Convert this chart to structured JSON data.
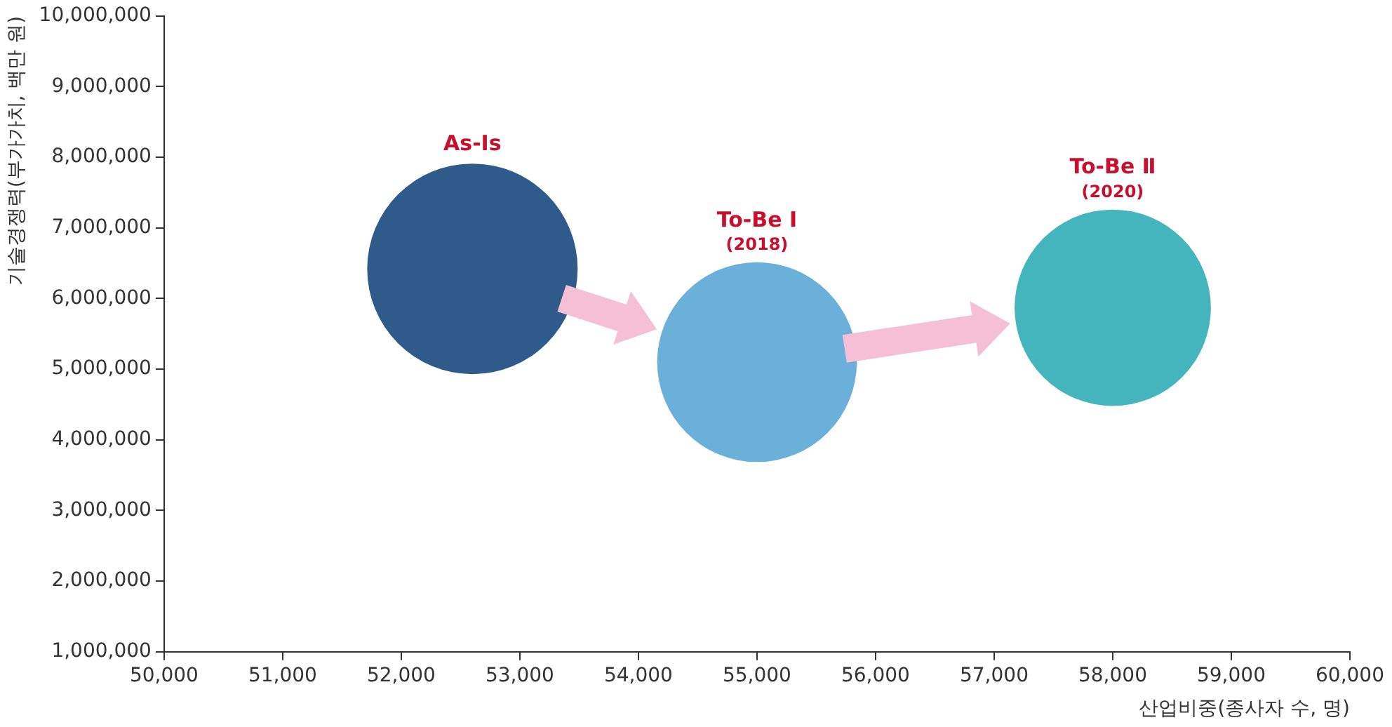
{
  "chart_data": {
    "type": "bubble",
    "xlabel": "산업비중(종사자 수, 명)",
    "ylabel": "기술경쟁력(부가가치, 백만 원)",
    "xlim": [
      50000,
      60000
    ],
    "xticks": [
      {
        "value": 50000,
        "label": "50,000"
      },
      {
        "value": 51000,
        "label": "51,000"
      },
      {
        "value": 52000,
        "label": "52,000"
      },
      {
        "value": 53000,
        "label": "53,000"
      },
      {
        "value": 54000,
        "label": "54,000"
      },
      {
        "value": 55000,
        "label": "55,000"
      },
      {
        "value": 56000,
        "label": "56,000"
      },
      {
        "value": 57000,
        "label": "57,000"
      },
      {
        "value": 58000,
        "label": "58,000"
      },
      {
        "value": 59000,
        "label": "59,000"
      },
      {
        "value": 60000,
        "label": "60,000"
      }
    ],
    "ylim": [
      1000000,
      10000000
    ],
    "yticks": [
      {
        "value": 1000000,
        "label": "1,000,000"
      },
      {
        "value": 2000000,
        "label": "2,000,000"
      },
      {
        "value": 3000000,
        "label": "3,000,000"
      },
      {
        "value": 4000000,
        "label": "4,000,000"
      },
      {
        "value": 5000000,
        "label": "5,000,000"
      },
      {
        "value": 6000000,
        "label": "6,000,000"
      },
      {
        "value": 7000000,
        "label": "7,000,000"
      },
      {
        "value": 8000000,
        "label": "8,000,000"
      },
      {
        "value": 9000000,
        "label": "9,000,000"
      },
      {
        "value": 10000000,
        "label": "10,000,000"
      }
    ],
    "grid": false,
    "legend": false,
    "series": [
      {
        "name": "As-Is",
        "color": "#2f5b8a",
        "x": [
          52600
        ],
        "values": [
          6420000
        ],
        "sizes": [
          1
        ]
      },
      {
        "name": "To-Be Ⅰ",
        "color": "#6ab0d8",
        "x": [
          55000
        ],
        "values": [
          5100000
        ],
        "sizes": [
          0.9
        ]
      },
      {
        "name": "To-Be Ⅱ",
        "color": "#45b5bd",
        "x": [
          58000
        ],
        "values": [
          5870000
        ],
        "sizes": [
          0.87
        ]
      }
    ],
    "annotations": [
      "(2018)",
      "(2020)"
    ]
  }
}
